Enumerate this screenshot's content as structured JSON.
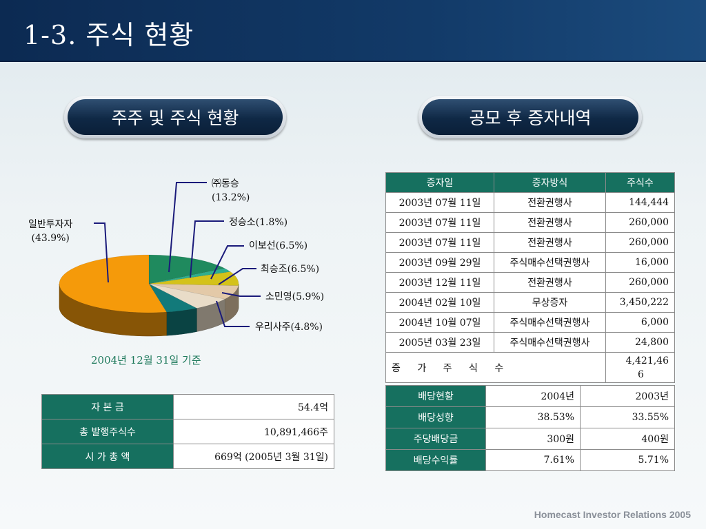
{
  "header": {
    "title": "1-3. 주식 현황"
  },
  "sections": {
    "left_title": "주주 및 주식 현황",
    "right_title": "공모 후 증자내역"
  },
  "chart_data": {
    "type": "pie",
    "slices": [
      {
        "label": "(주)동승",
        "value": 13.2,
        "color": "#1f8a5e"
      },
      {
        "label": "정승소",
        "value": 1.8,
        "color": "#2fae8e"
      },
      {
        "label": "이보선",
        "value": 6.5,
        "color": "#d4c21a"
      },
      {
        "label": "최승조",
        "value": 6.5,
        "color": "#e3c9a8"
      },
      {
        "label": "소민영",
        "value": 5.9,
        "color": "#e9dcc8"
      },
      {
        "label": "우리사주",
        "value": 4.8,
        "color": "#127a7a"
      },
      {
        "label": "일반투자자",
        "value": 43.9,
        "color": "#f59a0a"
      }
    ]
  },
  "pie_labels": {
    "dongseung": "㈜동승",
    "dongseung_pct": "(13.2%)",
    "jeong": "정승소(1.8%)",
    "lee": "이보선(6.5%)",
    "choi": "최승조(6.5%)",
    "so": "소민영(5.9%)",
    "woori": "우리사주(4.8%)",
    "general": "일반투자자",
    "general_pct": "(43.9%)"
  },
  "basis_date": "2004년 12월 31일 기준",
  "capital_table": [
    {
      "label": "자 본 금",
      "value": "54.4억"
    },
    {
      "label": "총 발행주식수",
      "value": "10,891,466주"
    },
    {
      "label": "시 가 총 액",
      "value": "669억 (2005년 3월 31일)"
    }
  ],
  "increase_table": {
    "headers": [
      "증자일",
      "증자방식",
      "주식수"
    ],
    "rows": [
      [
        "2003년 07월 11일",
        "전환권행사",
        "144,444"
      ],
      [
        "2003년 07월 11일",
        "전환권행사",
        "260,000"
      ],
      [
        "2003년 07월 11일",
        "전환권행사",
        "260,000"
      ],
      [
        "2003년 09월 29일",
        "주식매수선택권행사",
        "16,000"
      ],
      [
        "2003년 12월 11일",
        "전환권행사",
        "260,000"
      ],
      [
        "2004년 02월 10일",
        "무상증자",
        "3,450,222"
      ],
      [
        "2004년 10월 07일",
        "주식매수선택권행사",
        "6,000"
      ],
      [
        "2005년 03월 23일",
        "주식매수선택권행사",
        "24,800"
      ]
    ],
    "total_label": "증 가 주 식 수",
    "total_value_line1": "4,421,46",
    "total_value_line2": "6"
  },
  "dividend_table": {
    "rows": [
      [
        "배당현황",
        "2004년",
        "2003년"
      ],
      [
        "배당성향",
        "38.53%",
        "33.55%"
      ],
      [
        "주당배당금",
        "300원",
        "400원"
      ],
      [
        "배당수익률",
        "7.61%",
        "5.71%"
      ]
    ]
  },
  "footer": "Homecast Investor Relations 2005"
}
